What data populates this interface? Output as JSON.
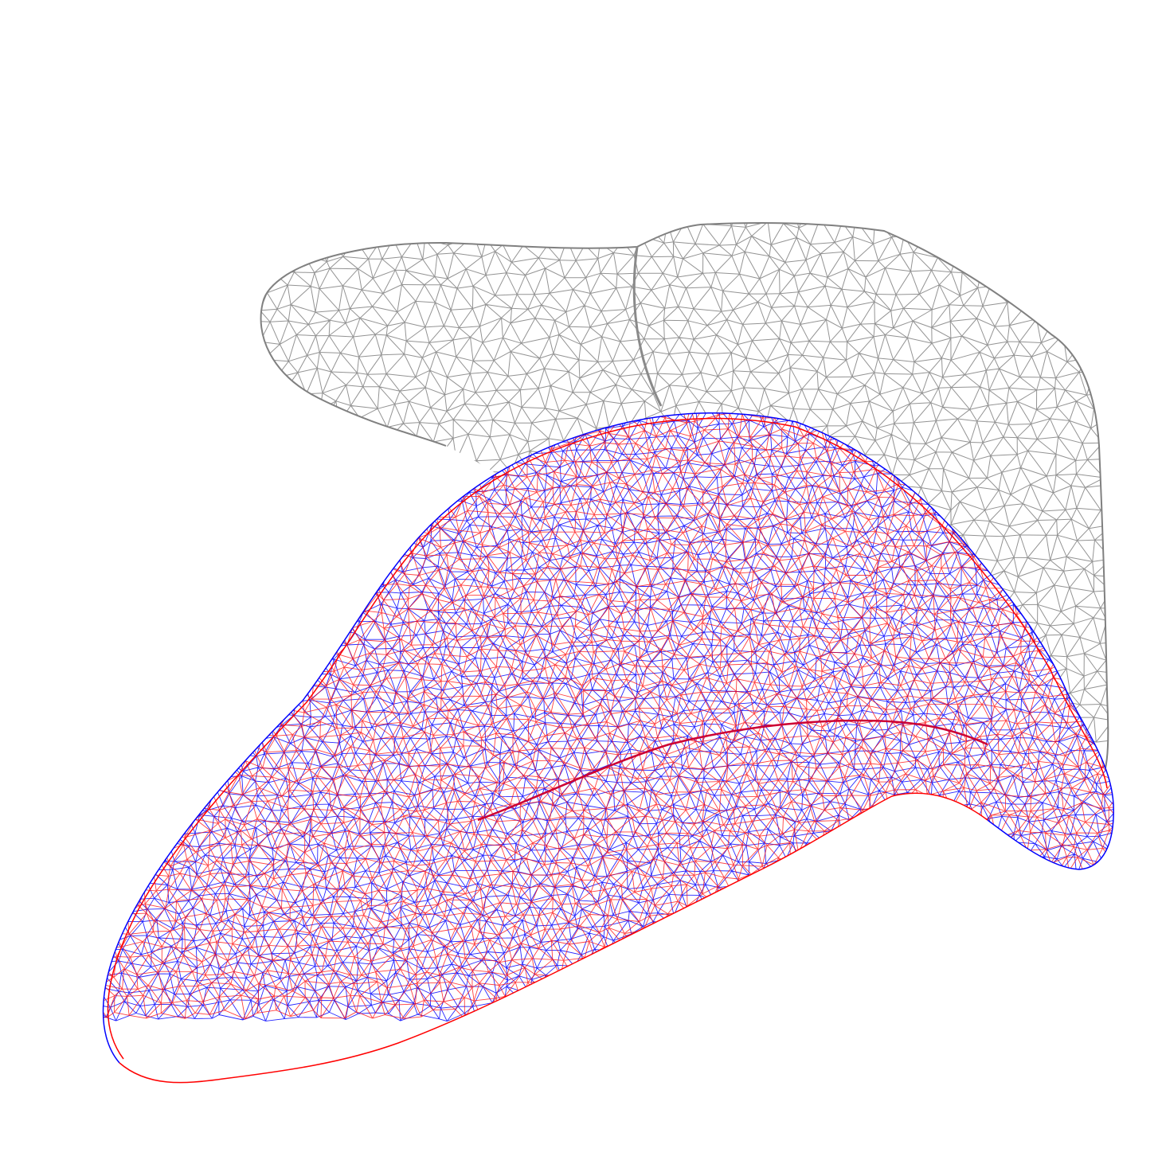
{
  "figure": {
    "background": "#ffffff",
    "meshes": [
      {
        "id": "reference-mesh",
        "color": "#808080"
      },
      {
        "id": "blue-mesh",
        "color": "#0000ff"
      },
      {
        "id": "red-mesh",
        "color": "#ff0000"
      }
    ]
  }
}
